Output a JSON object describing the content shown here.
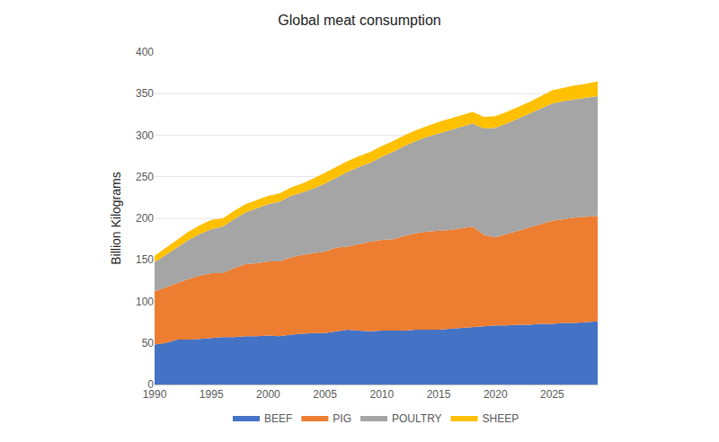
{
  "chart_data": {
    "type": "area",
    "title": "Global meat consumption",
    "y_label": "Billion Kilograms",
    "stacked": true,
    "grid": true,
    "legend": "bottom",
    "x": [
      1990,
      1991,
      1992,
      1993,
      1994,
      1995,
      1996,
      1997,
      1998,
      1999,
      2000,
      2001,
      2002,
      2003,
      2004,
      2005,
      2006,
      2007,
      2008,
      2009,
      2010,
      2011,
      2012,
      2013,
      2014,
      2015,
      2016,
      2017,
      2018,
      2019,
      2020,
      2021,
      2022,
      2023,
      2024,
      2025,
      2026,
      2027,
      2028,
      2029
    ],
    "xlim": [
      1990,
      2029
    ],
    "xticks": [
      1990,
      1995,
      2000,
      2005,
      2010,
      2015,
      2020,
      2025
    ],
    "ylim": [
      0,
      400
    ],
    "yticks": [
      0,
      50,
      100,
      150,
      200,
      250,
      300,
      350,
      400
    ],
    "series": [
      {
        "name": "BEEF",
        "color": "#4472C4",
        "values": [
          48,
          50,
          54,
          54,
          55,
          56,
          57,
          57,
          58,
          58,
          59,
          58,
          60,
          61,
          62,
          62,
          64,
          66,
          65,
          64,
          65,
          65,
          65,
          66,
          66,
          66,
          67,
          68,
          69,
          70,
          71,
          71,
          72,
          72,
          73,
          73,
          74,
          74,
          75,
          76
        ]
      },
      {
        "name": "PIG",
        "color": "#ED7D31",
        "values": [
          64,
          67,
          68,
          73,
          76,
          78,
          77,
          83,
          87,
          88,
          89,
          90,
          93,
          95,
          96,
          98,
          101,
          100,
          104,
          108,
          109,
          110,
          114,
          116,
          118,
          119,
          119,
          120,
          121,
          110,
          106,
          110,
          113,
          117,
          120,
          124,
          125,
          127,
          127,
          127
        ]
      },
      {
        "name": "POULTRY",
        "color": "#A5A5A5",
        "values": [
          35,
          39,
          43,
          47,
          50,
          53,
          56,
          59,
          62,
          66,
          69,
          72,
          74,
          75,
          78,
          82,
          84,
          90,
          93,
          95,
          100,
          105,
          108,
          111,
          114,
          117,
          120,
          122,
          124,
          128,
          132,
          133,
          135,
          137,
          139,
          141,
          142,
          142,
          143,
          144
        ]
      },
      {
        "name": "SHEEP",
        "color": "#FFC000",
        "values": [
          8,
          9,
          10,
          10,
          11,
          11,
          10,
          10,
          10,
          10,
          10,
          10,
          10,
          11,
          12,
          13,
          13,
          13,
          13,
          13,
          13,
          13,
          13,
          13,
          13,
          14,
          14,
          14,
          14,
          14,
          14,
          14,
          14,
          14,
          15,
          16,
          16,
          17,
          17,
          18
        ]
      }
    ]
  }
}
